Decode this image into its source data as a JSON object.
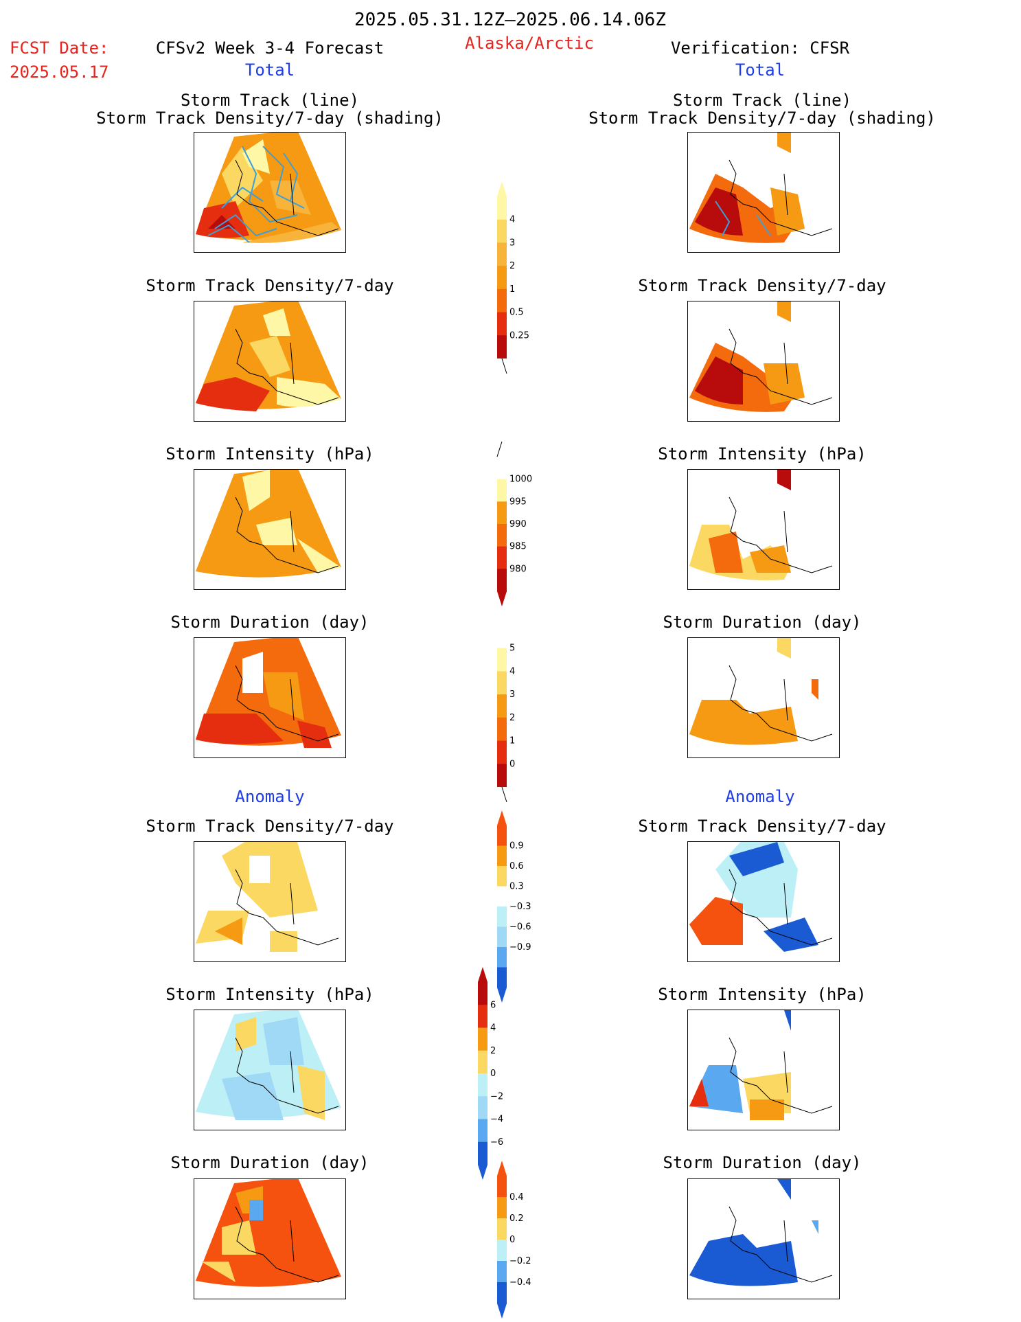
{
  "header": {
    "date_range": "2025.05.31.12Z–2025.06.14.06Z",
    "region": "Alaska/Arctic",
    "fcst_label": "FCST Date:",
    "fcst_date": "2025.05.17",
    "left_title": "CFSv2 Week 3-4 Forecast",
    "right_title": "Verification: CFSR",
    "left_section": "Total",
    "right_section": "Total",
    "left_anomaly": "Anomaly",
    "right_anomaly": "Anomaly"
  },
  "panel_titles": {
    "track_line": "Storm Track (line)\nStorm Track Density/7-day (shading)",
    "density": "Storm Track Density/7-day",
    "intensity": "Storm Intensity (hPa)",
    "duration": "Storm Duration (day)"
  },
  "colors": {
    "yellow_light": "#fef7a6",
    "yellow": "#fbd861",
    "orange_light": "#f8b33b",
    "orange": "#f59a12",
    "orange_dark": "#f46b0e",
    "red": "#e52e10",
    "red_dark": "#b80c0c",
    "blue_light": "#bdeff6",
    "blue_pale": "#9fd9f5",
    "blue": "#5aa8ef",
    "blue_mid": "#3b82e6",
    "blue_dark": "#1a5bd4",
    "track_line": "#3c9fd8"
  },
  "chart_data": [
    {
      "type": "heatmap",
      "name": "total-density-colorbar",
      "levels": [
        "0.25",
        "0.5",
        "1",
        "2",
        "3",
        "4"
      ],
      "colors": [
        "#fef7a6",
        "#fbd861",
        "#f8b33b",
        "#f59a12",
        "#f46b0e",
        "#e52e10",
        "#b80c0c"
      ]
    },
    {
      "type": "heatmap",
      "name": "total-intensity-colorbar",
      "levels": [
        "1000",
        "995",
        "990",
        "985",
        "980"
      ],
      "colors": [
        "#ffffff",
        "#fef7a6",
        "#f59a12",
        "#f46b0e",
        "#e52e10",
        "#b80c0c"
      ]
    },
    {
      "type": "heatmap",
      "name": "total-duration-colorbar",
      "levels": [
        "0",
        "1",
        "2",
        "3",
        "4",
        "5"
      ],
      "colors": [
        "#ffffff",
        "#fef7a6",
        "#fbd861",
        "#f59a12",
        "#f46b0e",
        "#e52e10",
        "#b80c0c"
      ]
    },
    {
      "type": "heatmap",
      "name": "anomaly-density-colorbar",
      "levels": [
        "0.9",
        "0.6",
        "0.3",
        "−0.3",
        "−0.6",
        "−0.9"
      ],
      "colors": [
        "#f4520e",
        "#f59a12",
        "#fbd861",
        "#ffffff",
        "#bdeff6",
        "#9fd9f5",
        "#5aa8ef",
        "#1a5bd4"
      ]
    },
    {
      "type": "heatmap",
      "name": "anomaly-intensity-colorbar",
      "levels": [
        "6",
        "4",
        "2",
        "0",
        "−2",
        "−4",
        "−6"
      ],
      "colors": [
        "#b80c0c",
        "#e52e10",
        "#f59a12",
        "#fbd861",
        "#bdeff6",
        "#9fd9f5",
        "#5aa8ef",
        "#1a5bd4"
      ]
    },
    {
      "type": "heatmap",
      "name": "anomaly-duration-colorbar",
      "levels": [
        "0.4",
        "0.2",
        "0",
        "−0.2",
        "−0.4"
      ],
      "colors": [
        "#f4520e",
        "#f59a12",
        "#fbd861",
        "#bdeff6",
        "#5aa8ef",
        "#1a5bd4"
      ]
    }
  ]
}
